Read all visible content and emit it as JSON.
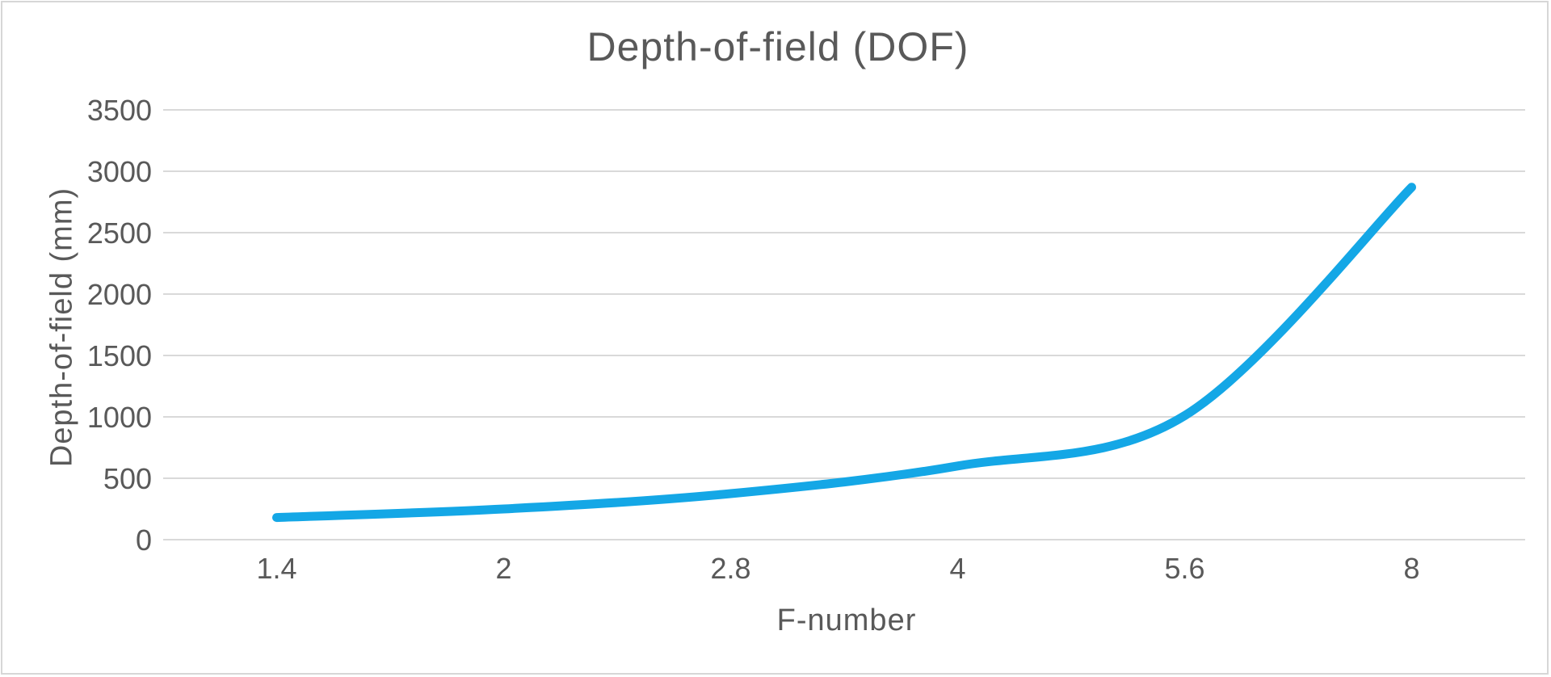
{
  "chart": {
    "colors": {
      "line": "#14A7E6",
      "gridline": "#D9D9D9",
      "text": "#595959",
      "frame_border": "#D7D7D7",
      "background": "#FFFFFF"
    }
  },
  "chart_data": {
    "type": "line",
    "title": "Depth-of-field (DOF)",
    "xlabel": "F-number",
    "ylabel": "Depth-of-field (mm)",
    "categories": [
      "1.4",
      "2",
      "2.8",
      "4",
      "5.6",
      "8"
    ],
    "values": [
      180,
      250,
      375,
      600,
      1010,
      2870
    ],
    "y_tick_labels": [
      "0",
      "500",
      "1000",
      "1500",
      "2000",
      "2500",
      "3000",
      "3500"
    ],
    "y_tick_values": [
      0,
      500,
      1000,
      1500,
      2000,
      2500,
      3000,
      3500
    ],
    "ylim": [
      0,
      3500
    ],
    "grid": "horizontal",
    "legend": "none",
    "smooth": true,
    "line_width": 11
  }
}
